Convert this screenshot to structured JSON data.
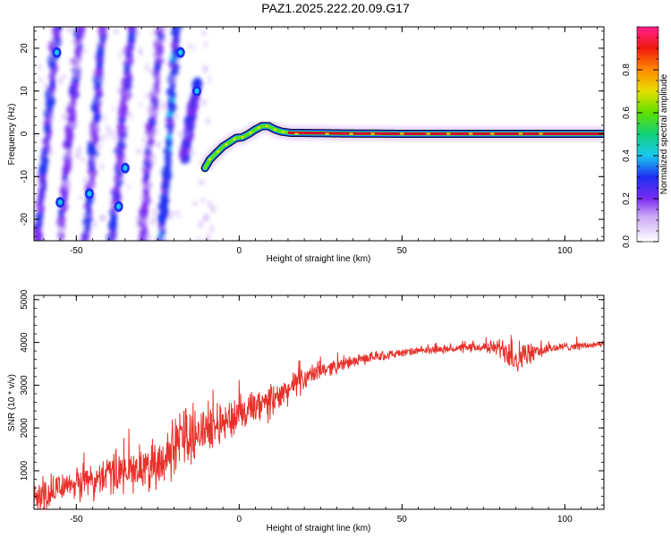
{
  "title": "PAZ1.2025.222.20.09.G17",
  "colors": {
    "snr_line": "#e8312b",
    "spectro_ridge": "#d6002a",
    "spectro_halo": "#18c8b0",
    "spectro_outline": "#000000",
    "streak_blue": "#3a2fd8",
    "streak_purple": "#8a3ff0"
  },
  "chart_data": [
    {
      "type": "heatmap",
      "title": "PAZ1.2025.222.20.09.G17",
      "xlabel": "Height of straight line (km)",
      "ylabel": "Frequency (Hz)",
      "xlim": [
        -63,
        112
      ],
      "ylim": [
        -25,
        25
      ],
      "xticks": [
        -50,
        0,
        50,
        100
      ],
      "yticks": [
        -20,
        -10,
        0,
        10,
        20
      ],
      "colorbar": {
        "label": "Normalized spectral amplitude",
        "range": [
          0,
          1
        ],
        "ticks": [
          0.0,
          0.2,
          0.4,
          0.6,
          0.8
        ],
        "colormap": "rainbow (white, purple, blue, cyan, green, yellow, red, magenta)"
      },
      "ridge": {
        "x": [
          -10.5,
          -9,
          -7,
          -5,
          -3,
          -1,
          1,
          3,
          5,
          7,
          9,
          11,
          13,
          16,
          20,
          30,
          50,
          70,
          90,
          100,
          112
        ],
        "y": [
          -8,
          -6,
          -4.5,
          -3,
          -2,
          -1,
          -0.8,
          0,
          1,
          1.8,
          1.8,
          1,
          0.5,
          0.2,
          0.2,
          0.1,
          0,
          0,
          0,
          0,
          0
        ],
        "value": 0.9
      },
      "streaks": [
        {
          "x_start": -62,
          "x_end": -56,
          "y_start": -25,
          "y_end": 25,
          "value": 0.3
        },
        {
          "x_start": -55,
          "x_end": -49,
          "y_start": -25,
          "y_end": 25,
          "value": 0.25
        },
        {
          "x_start": -47,
          "x_end": -42,
          "y_start": -25,
          "y_end": 25,
          "value": 0.3
        },
        {
          "x_start": -39,
          "x_end": -33,
          "y_start": -25,
          "y_end": 25,
          "value": 0.3
        },
        {
          "x_start": -30,
          "x_end": -24,
          "y_start": -25,
          "y_end": 25,
          "value": 0.25
        },
        {
          "x_start": -24,
          "x_end": -19,
          "y_start": -25,
          "y_end": 25,
          "value": 0.35
        },
        {
          "x_start": -17,
          "x_end": -13,
          "y_start": -6,
          "y_end": 12,
          "value": 0.3
        }
      ],
      "hotspots": [
        {
          "x": -56,
          "y": 19,
          "value": 0.4
        },
        {
          "x": -55,
          "y": -16,
          "value": 0.35
        },
        {
          "x": -46,
          "y": -14,
          "value": 0.35
        },
        {
          "x": -35,
          "y": -8,
          "value": 0.3
        },
        {
          "x": -37,
          "y": -17,
          "value": 0.35
        },
        {
          "x": -18,
          "y": 19,
          "value": 0.35
        },
        {
          "x": -13,
          "y": 10,
          "value": 0.4
        }
      ]
    },
    {
      "type": "line",
      "xlabel": "Height of straight line (km)",
      "ylabel": "SNR (10 * v/v)",
      "xlim": [
        -63,
        112
      ],
      "ylim": [
        100,
        5100
      ],
      "xticks": [
        -50,
        0,
        50,
        100
      ],
      "yticks": [
        1000,
        2000,
        3000,
        4000,
        5000
      ],
      "series": [
        {
          "x": [
            -63,
            -55,
            -50,
            -45,
            -40,
            -35,
            -30,
            -25,
            -20,
            -17,
            -15,
            -10,
            -5,
            0,
            5,
            10,
            15,
            20,
            25,
            30,
            35,
            40,
            45,
            50,
            55,
            60,
            65,
            70,
            75,
            80,
            83,
            85,
            88,
            90,
            95,
            100,
            105,
            112
          ],
          "y": [
            400,
            600,
            700,
            800,
            900,
            1000,
            1050,
            1200,
            1500,
            1900,
            1800,
            2000,
            2150,
            2300,
            2450,
            2600,
            2900,
            3150,
            3350,
            3450,
            3550,
            3650,
            3700,
            3750,
            3800,
            3830,
            3850,
            3870,
            3890,
            3880,
            3800,
            3650,
            3700,
            3750,
            3850,
            3900,
            3920,
            3950
          ],
          "noise": [
            450,
            450,
            500,
            550,
            600,
            650,
            650,
            650,
            800,
            900,
            800,
            650,
            600,
            550,
            550,
            500,
            400,
            350,
            250,
            200,
            170,
            150,
            130,
            120,
            110,
            110,
            120,
            140,
            150,
            250,
            600,
            500,
            400,
            250,
            160,
            120,
            110,
            100
          ]
        }
      ]
    }
  ]
}
